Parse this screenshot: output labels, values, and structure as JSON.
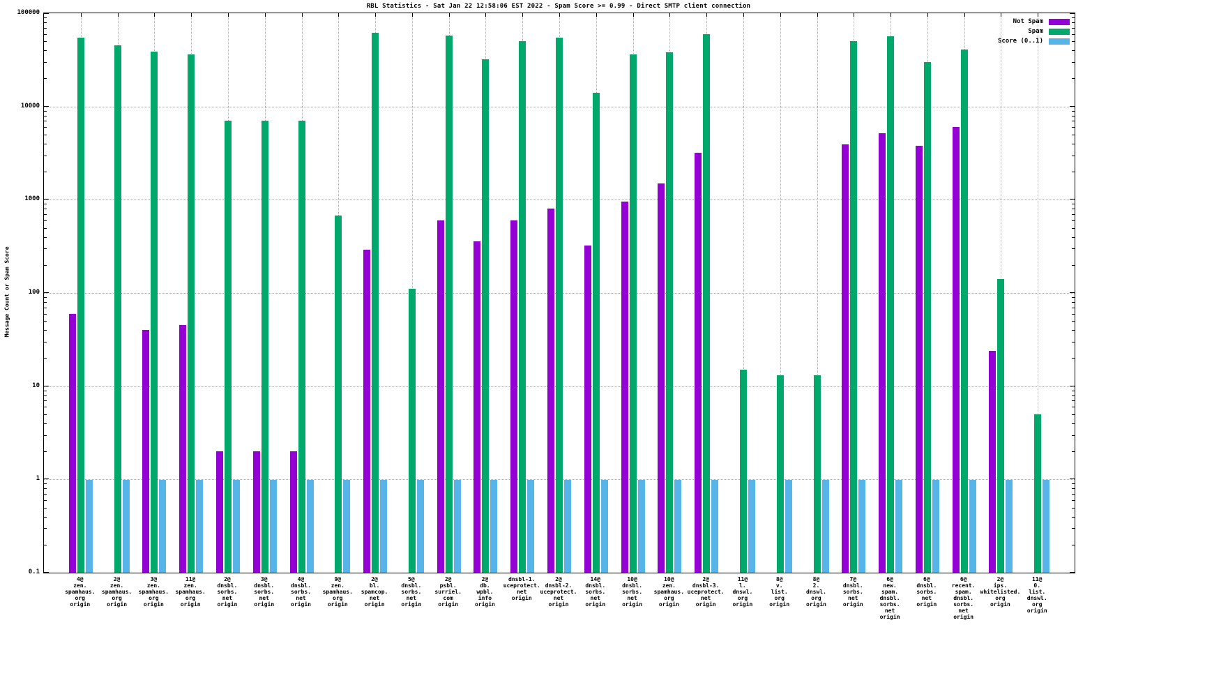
{
  "title": "RBL Statistics - Sat Jan 22 12:58:06 EST 2022 - Spam Score >= 0.99 - Direct SMTP client connection",
  "chart_data": {
    "type": "bar",
    "title": "RBL Statistics - Sat Jan 22 12:58:06 EST 2022 - Spam Score >= 0.99 - Direct SMTP client connection",
    "ylabel": "Message Count or Spam Score",
    "xlabel": "",
    "y_scale": "log",
    "ylim": [
      0.1,
      100000
    ],
    "ytick_labels": [
      "0.1",
      "1",
      "10",
      "100",
      "1000",
      "10000",
      "100000"
    ],
    "grid": true,
    "legend_position": "top-right-inside",
    "categories": [
      [
        "4@",
        "zen.",
        "spamhaus.",
        "org",
        "origin"
      ],
      [
        "2@",
        "zen.",
        "spamhaus.",
        "org",
        "origin"
      ],
      [
        "3@",
        "zen.",
        "spamhaus.",
        "org",
        "origin"
      ],
      [
        "11@",
        "zen.",
        "spamhaus.",
        "org",
        "origin"
      ],
      [
        "2@",
        "dnsbl.",
        "sorbs.",
        "net",
        "origin"
      ],
      [
        "3@",
        "dnsbl.",
        "sorbs.",
        "net",
        "origin"
      ],
      [
        "4@",
        "dnsbl.",
        "sorbs.",
        "net",
        "origin"
      ],
      [
        "9@",
        "zen.",
        "spamhaus.",
        "org",
        "origin"
      ],
      [
        "2@",
        "bl.",
        "spamcop.",
        "net",
        "origin"
      ],
      [
        "5@",
        "dnsbl.",
        "sorbs.",
        "net",
        "origin"
      ],
      [
        "2@",
        "psbl.",
        "surriel.",
        "com",
        "origin"
      ],
      [
        "2@",
        "db.",
        "wpbl.",
        "info",
        "origin"
      ],
      [
        "dnsbl-1.",
        "uceprotect.",
        "net",
        "origin"
      ],
      [
        "2@",
        "dnsbl-2.",
        "uceprotect.",
        "net",
        "origin"
      ],
      [
        "14@",
        "dnsbl.",
        "sorbs.",
        "net",
        "origin"
      ],
      [
        "10@",
        "dnsbl.",
        "sorbs.",
        "net",
        "origin"
      ],
      [
        "10@",
        "zen.",
        "spamhaus.",
        "org",
        "origin"
      ],
      [
        "2@",
        "dnsbl-3.",
        "uceprotect.",
        "net",
        "origin"
      ],
      [
        "11@",
        "l.",
        "dnswl.",
        "org",
        "origin"
      ],
      [
        "8@",
        "v.",
        "list.",
        "org",
        "origin"
      ],
      [
        "8@",
        "2.",
        "dnswl.",
        "org",
        "origin"
      ],
      [
        "7@",
        "dnsbl.",
        "sorbs.",
        "net",
        "origin"
      ],
      [
        "6@",
        "new.",
        "spam.",
        "dnsbl.",
        "sorbs.",
        "net",
        "origin"
      ],
      [
        "6@",
        "dnsbl.",
        "sorbs.",
        "net",
        "origin"
      ],
      [
        "6@",
        "recent.",
        "spam.",
        "dnsbl.",
        "sorbs.",
        "net",
        "origin"
      ],
      [
        "2@",
        "ips.",
        "whitelisted.",
        "org",
        "origin"
      ],
      [
        "11@",
        "0.",
        "list.",
        "dnswl.",
        "org",
        "origin"
      ]
    ],
    "series": [
      {
        "name": "Not Spam",
        "color": "#9400d3",
        "values": [
          60,
          0,
          40,
          45,
          2,
          2,
          2,
          0,
          290,
          0,
          600,
          360,
          600,
          800,
          320,
          950,
          1500,
          3200,
          0,
          0,
          0,
          3900,
          5200,
          3800,
          6000,
          24,
          0
        ]
      },
      {
        "name": "Spam",
        "color": "#00a86b",
        "values": [
          55000,
          45000,
          39000,
          36000,
          7000,
          7000,
          7000,
          680,
          62000,
          110,
          58000,
          32000,
          50000,
          55000,
          14000,
          36000,
          38000,
          60000,
          15,
          13,
          13,
          50000,
          57000,
          30000,
          41000,
          140,
          5
        ]
      },
      {
        "name": "Score (0..1)",
        "color": "#56b4e9",
        "values": [
          0.99,
          0.99,
          0.99,
          0.99,
          0.99,
          0.99,
          0.99,
          0.99,
          0.99,
          0.99,
          0.99,
          0.99,
          0.99,
          0.99,
          0.99,
          0.99,
          0.99,
          0.99,
          0.99,
          0.99,
          0.99,
          0.99,
          0.99,
          0.99,
          0.99,
          0.99,
          0.99
        ]
      }
    ]
  }
}
